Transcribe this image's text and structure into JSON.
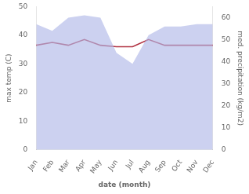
{
  "chart_data": {
    "type": "line",
    "categories": [
      "Jan",
      "Feb",
      "Mar",
      "Apr",
      "May",
      "Jun",
      "Jul",
      "Aug",
      "Sep",
      "Oct",
      "Nov",
      "Dec"
    ],
    "series": [
      {
        "type": "area",
        "axis": "y2",
        "color": "#b0b8e8",
        "values": [
          57,
          54,
          60,
          61,
          60,
          44,
          39,
          52,
          56,
          56,
          57,
          57
        ]
      },
      {
        "type": "line",
        "color": "#b03040",
        "values": [
          36.5,
          37.5,
          36.5,
          38.5,
          36.5,
          36.0,
          36.0,
          38.5,
          36.5,
          36.5,
          36.5,
          36.5
        ]
      }
    ],
    "xlabel": "date (month)",
    "ylabel": "max temp (C)",
    "y2label": "med. precipitation (kg/m2)",
    "ylim": [
      0,
      50
    ],
    "yticks": [
      0,
      10,
      20,
      30,
      40,
      50
    ],
    "y2lim": [
      0,
      65
    ],
    "y2ticks": [
      0,
      10,
      20,
      30,
      40,
      50,
      60
    ],
    "grid": false
  }
}
